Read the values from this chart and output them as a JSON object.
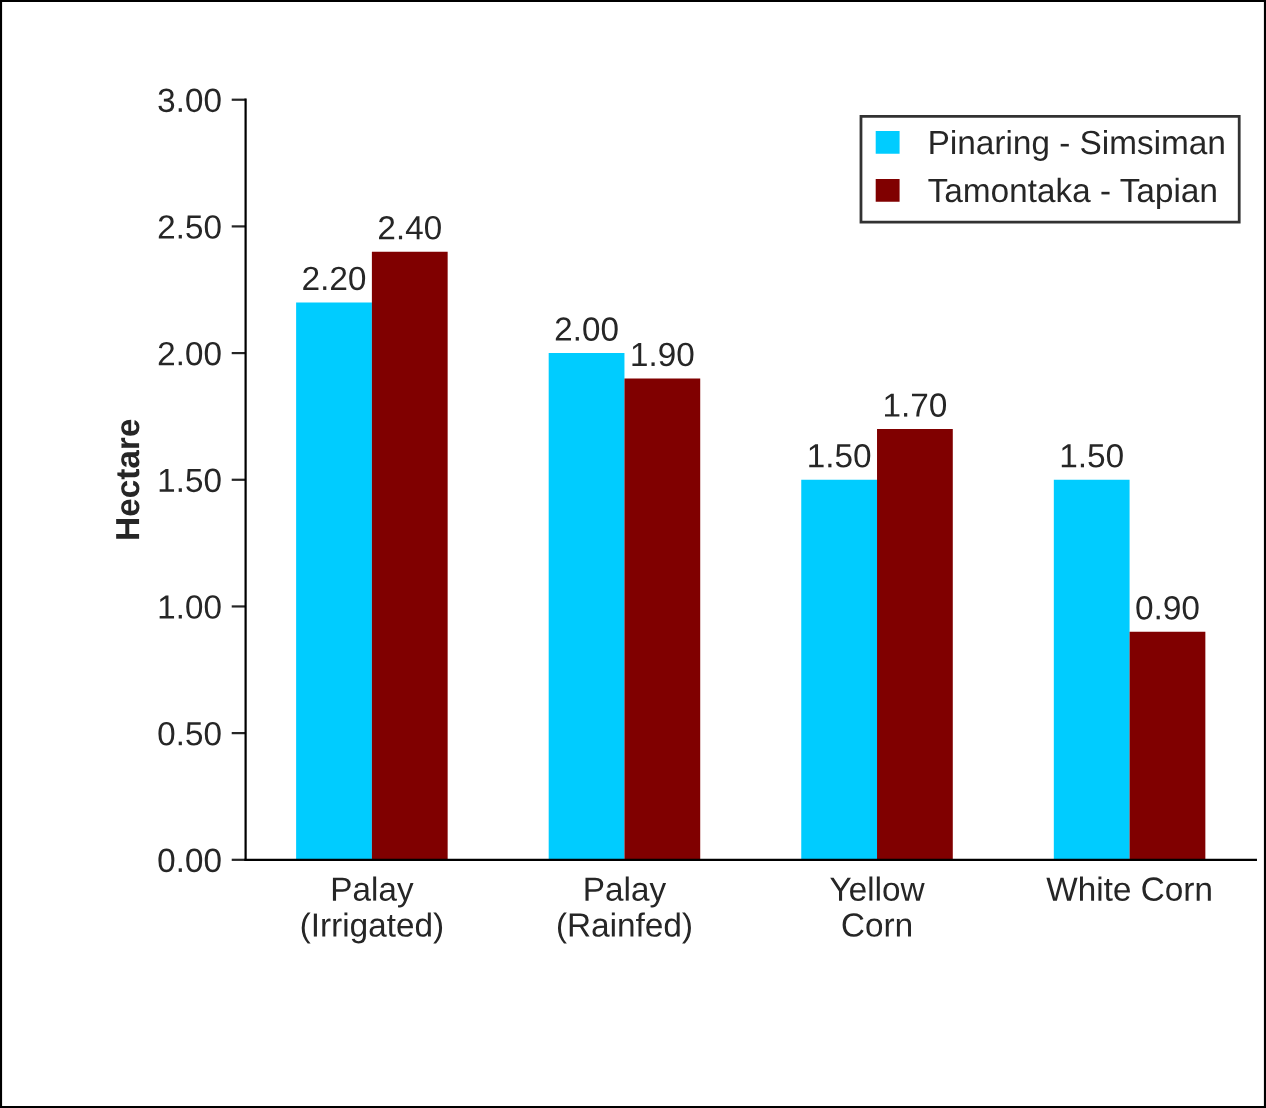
{
  "chart_data": {
    "type": "bar",
    "ylabel": "Hectare",
    "categories": [
      "Palay\n(Irrigated)",
      "Palay\n(Rainfed)",
      "Yellow\nCorn",
      "White Corn"
    ],
    "series": [
      {
        "name": "Pinaring - Simsiman",
        "color": "#00ccff",
        "values": [
          2.2,
          2.0,
          1.5,
          1.5
        ],
        "value_labels": [
          "2.20",
          "2.00",
          "1.50",
          "1.50"
        ]
      },
      {
        "name": "Tamontaka - Tapian",
        "color": "#800000",
        "values": [
          2.4,
          1.9,
          1.7,
          0.9
        ],
        "value_labels": [
          "2.40",
          "1.90",
          "1.70",
          "0.90"
        ]
      }
    ],
    "ylim": [
      0,
      3
    ],
    "yticks": [
      {
        "value": 0,
        "label": "0.00"
      },
      {
        "value": 0.5,
        "label": "0.50"
      },
      {
        "value": 1,
        "label": "1.00"
      },
      {
        "value": 1.5,
        "label": "1.50"
      },
      {
        "value": 2,
        "label": "2.00"
      },
      {
        "value": 2.5,
        "label": "2.50"
      },
      {
        "value": 3,
        "label": "3.00"
      }
    ],
    "grid": false,
    "legend": "top right"
  }
}
